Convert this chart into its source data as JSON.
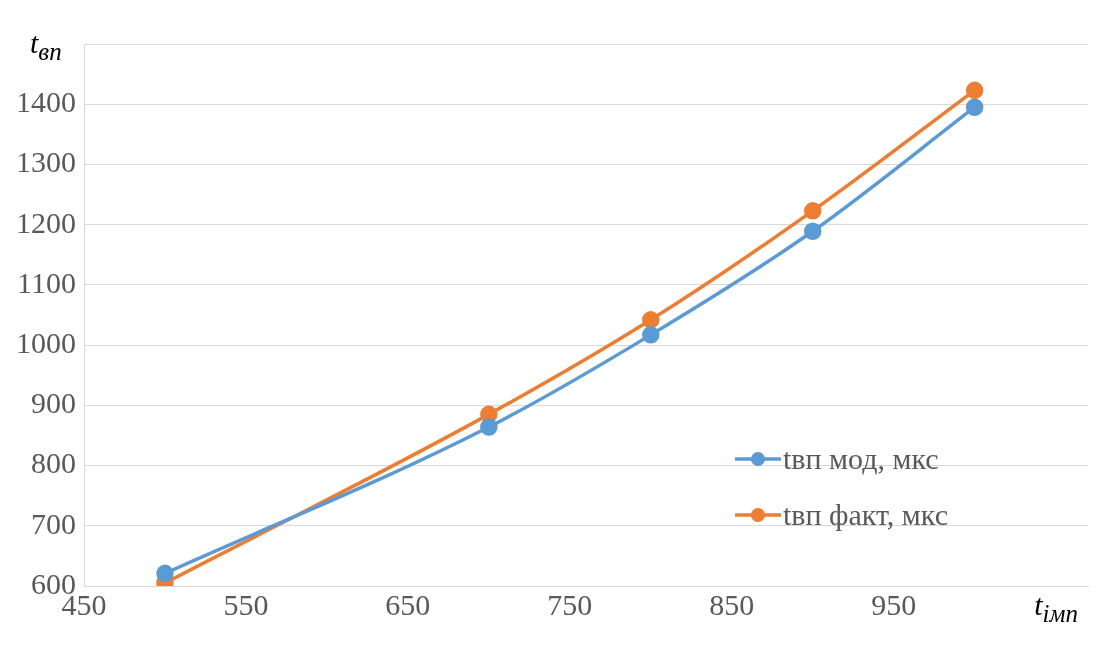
{
  "chart_data": {
    "type": "line",
    "xlabel": "t$_{імп}$",
    "ylabel": "t$_{вп}$",
    "x": [
      500,
      700,
      800,
      900,
      1000
    ],
    "series": [
      {
        "name": "tвп мод, мкс",
        "color": "#5b9bd5",
        "values": [
          621,
          864,
          1017,
          1189,
          1395
        ]
      },
      {
        "name": "tвп факт, мкс",
        "color": "#ed7d31",
        "values": [
          605,
          885,
          1042,
          1223,
          1423
        ]
      }
    ],
    "xlim": [
      450,
      1070
    ],
    "xticks": [
      450,
      550,
      650,
      750,
      850,
      950
    ],
    "ylim": [
      600,
      1500
    ],
    "yticks": [
      600,
      700,
      800,
      900,
      1000,
      1100,
      1200,
      1300,
      1400,
      {
        "value": 1500,
        "label": null
      }
    ],
    "grid": "y",
    "legend": "bottom right",
    "marker": "circle",
    "line_style": "solid"
  }
}
